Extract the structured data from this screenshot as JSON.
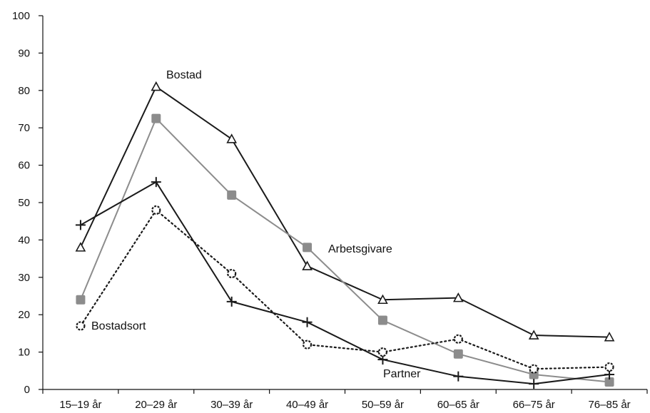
{
  "chart_data": {
    "type": "line",
    "categories": [
      "15–19 år",
      "20–29 år",
      "30–39 år",
      "40–49 år",
      "50–59 år",
      "60–65 år",
      "66–75 år",
      "76–85 år"
    ],
    "ylim": [
      0,
      100
    ],
    "yticks": [
      0,
      10,
      20,
      30,
      40,
      50,
      60,
      70,
      80,
      90,
      100
    ],
    "grid": false,
    "legend": "none",
    "series": [
      {
        "name": "Bostad",
        "marker": "triangle",
        "color": "#1a1a1a",
        "dash": "solid",
        "values": [
          38,
          81,
          67,
          33,
          24,
          24.5,
          14.5,
          14
        ]
      },
      {
        "name": "Arbetsgivare",
        "marker": "square",
        "color": "#8c8c8c",
        "dash": "solid",
        "values": [
          24,
          72.5,
          52,
          38,
          18.5,
          9.5,
          4,
          2
        ]
      },
      {
        "name": "Partner",
        "marker": "plus",
        "color": "#1a1a1a",
        "dash": "solid",
        "values": [
          44,
          55.5,
          23.5,
          18,
          8,
          3.5,
          1.5,
          4
        ]
      },
      {
        "name": "Bostadsort",
        "marker": "circle",
        "color": "#1a1a1a",
        "dash": "dotted",
        "values": [
          17,
          48,
          31,
          12,
          10,
          13.5,
          5.5,
          6
        ]
      }
    ]
  }
}
